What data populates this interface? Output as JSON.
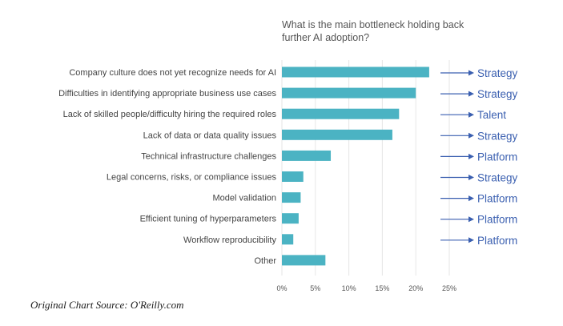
{
  "chart_data": {
    "type": "bar",
    "orientation": "horizontal",
    "title": "What is the main bottleneck holding back further AI adoption?",
    "title_lines": [
      "What is the main bottleneck holding back",
      "further AI adoption?"
    ],
    "categories": [
      "Company culture does not yet recognize needs for AI",
      "Difficulties in identifying appropriate business use cases",
      "Lack of skilled people/difficulty hiring the required roles",
      "Lack of data or data quality issues",
      "Technical infrastructure challenges",
      "Legal concerns, risks, or compliance issues",
      "Model validation",
      "Efficient tuning of hyperparameters",
      "Workflow reproducibility",
      "Other"
    ],
    "values": [
      22,
      20,
      17.5,
      16.5,
      7.3,
      3.2,
      2.8,
      2.5,
      1.7,
      6.5
    ],
    "annotations": [
      "Strategy",
      "Strategy",
      "Talent",
      "Strategy",
      "Platform",
      "Strategy",
      "Platform",
      "Platform",
      "Platform",
      null
    ],
    "xticks": [
      "0%",
      "5%",
      "10%",
      "15%",
      "20%",
      "25%"
    ],
    "xlim": [
      0,
      25
    ],
    "xlabel": "",
    "ylabel": "",
    "grid": true,
    "bar_color": "#4bb3c3",
    "annotation_color": "#3a5fb0"
  },
  "source_note": "Original Chart Source: O'Reilly.com"
}
